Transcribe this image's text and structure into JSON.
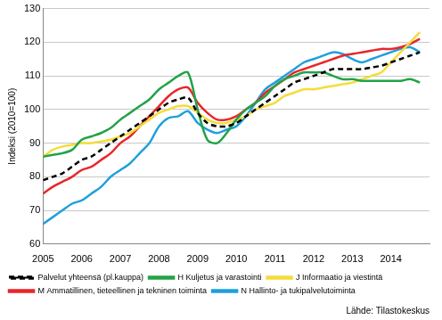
{
  "chart_data": {
    "type": "line",
    "y_label": "Indeksi (2010=100)",
    "source": "Lähde: Tilastokeskus",
    "x": [
      2005,
      2005.25,
      2005.5,
      2005.75,
      2006,
      2006.25,
      2006.5,
      2006.75,
      2007,
      2007.25,
      2007.5,
      2007.75,
      2008,
      2008.25,
      2008.5,
      2008.75,
      2009,
      2009.25,
      2009.5,
      2009.75,
      2010,
      2010.25,
      2010.5,
      2010.75,
      2011,
      2011.25,
      2011.5,
      2011.75,
      2012,
      2012.25,
      2012.5,
      2012.75,
      2013,
      2013.25,
      2013.5,
      2013.75,
      2014,
      2014.25,
      2014.5,
      2014.75
    ],
    "xlim": [
      2005,
      2015
    ],
    "xticks": [
      2005,
      2006,
      2007,
      2008,
      2009,
      2010,
      2011,
      2012,
      2013,
      2014
    ],
    "ylim": [
      60,
      130
    ],
    "yticks": [
      60,
      70,
      80,
      90,
      100,
      110,
      120,
      130
    ],
    "grid": true,
    "legend": "bottom",
    "series": [
      {
        "name": "Palvelut yhteensä (pl.kauppa)",
        "color": "#000000",
        "line_style": "dashed",
        "values": [
          79,
          80,
          81,
          83,
          85,
          86,
          88,
          90,
          92,
          94,
          96,
          98,
          100,
          102,
          103,
          103.5,
          99,
          96,
          95,
          95,
          96,
          98,
          100,
          102,
          104,
          106,
          108,
          109,
          110,
          111,
          112,
          112,
          112,
          112,
          112.5,
          113,
          114,
          115,
          116,
          117
        ]
      },
      {
        "name": "H Kuljetus ja varastointi",
        "color": "#22a347",
        "line_style": "solid",
        "values": [
          86,
          86.5,
          87,
          88,
          91,
          92,
          93,
          94.5,
          97,
          99,
          101,
          103,
          106,
          108,
          110,
          111,
          100,
          91,
          90,
          93,
          97,
          100,
          102,
          104,
          107,
          109,
          110,
          111,
          111,
          111,
          110,
          109,
          109,
          108.5,
          108.5,
          108.5,
          108.5,
          108.5,
          109,
          108
        ]
      },
      {
        "name": "J Informaatio ja viestintä",
        "color": "#f5dc3a",
        "line_style": "solid",
        "values": [
          86,
          88,
          89,
          89.5,
          90,
          90,
          90.5,
          91,
          92,
          93,
          95,
          97,
          99,
          100,
          101,
          101,
          99,
          97,
          96,
          96,
          97,
          98,
          100,
          101,
          102,
          104,
          105,
          106,
          106,
          106.5,
          107,
          107.5,
          108,
          109,
          110,
          111,
          114,
          117,
          120,
          123
        ]
      },
      {
        "name": "M Ammatillinen, tieteellinen ja tekninen toiminta",
        "color": "#e8262a",
        "line_style": "solid",
        "values": [
          75,
          77,
          78.5,
          80,
          82,
          83,
          85,
          87,
          90,
          92,
          95,
          98,
          101,
          104,
          106,
          106.5,
          102,
          99,
          97,
          97,
          98,
          100,
          102,
          105,
          107,
          109,
          111,
          112,
          113,
          114,
          115,
          116,
          116.5,
          117,
          117.5,
          118,
          118,
          118.5,
          119.5,
          121
        ]
      },
      {
        "name": "N Hallinto- ja tukipalvelutoiminta",
        "color": "#1ea0dc",
        "line_style": "solid",
        "values": [
          66,
          68,
          70,
          72,
          73,
          75,
          77,
          80,
          82,
          84,
          87,
          90,
          95,
          97.5,
          98,
          99.5,
          96,
          94,
          93,
          94,
          95,
          98,
          102,
          106,
          108,
          110,
          112,
          114,
          115,
          116,
          117,
          116.5,
          115,
          114,
          115,
          116,
          117,
          118,
          118.5,
          117
        ]
      }
    ]
  }
}
